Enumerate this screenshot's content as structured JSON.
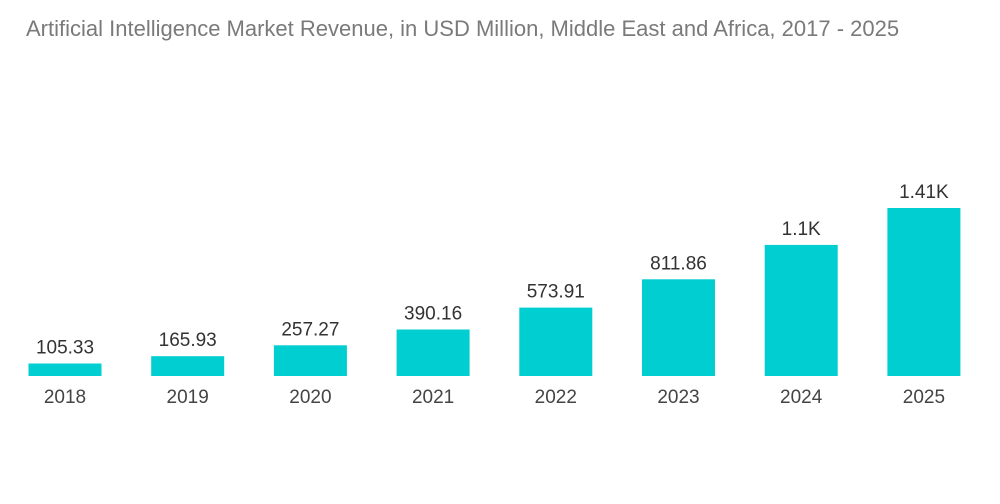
{
  "title": "Artificial Intelligence Market Revenue, in USD Million, Middle East and Africa, 2017 - 2025",
  "colors": {
    "bar": "#00ced1"
  },
  "chart_data": {
    "type": "bar",
    "title": "Artificial Intelligence Market Revenue, in USD Million, Middle East and Africa, 2017 - 2025",
    "categories": [
      "2018",
      "2019",
      "2020",
      "2021",
      "2022",
      "2023",
      "2024",
      "2025"
    ],
    "values": [
      105.33,
      165.93,
      257.27,
      390.16,
      573.91,
      811.86,
      1100,
      1410
    ],
    "data_labels": [
      "105.33",
      "165.93",
      "257.27",
      "390.16",
      "573.91",
      "811.86",
      "1.1K",
      "1.41K"
    ],
    "xlabel": "",
    "ylabel": "",
    "grid": false,
    "legend": "none"
  }
}
